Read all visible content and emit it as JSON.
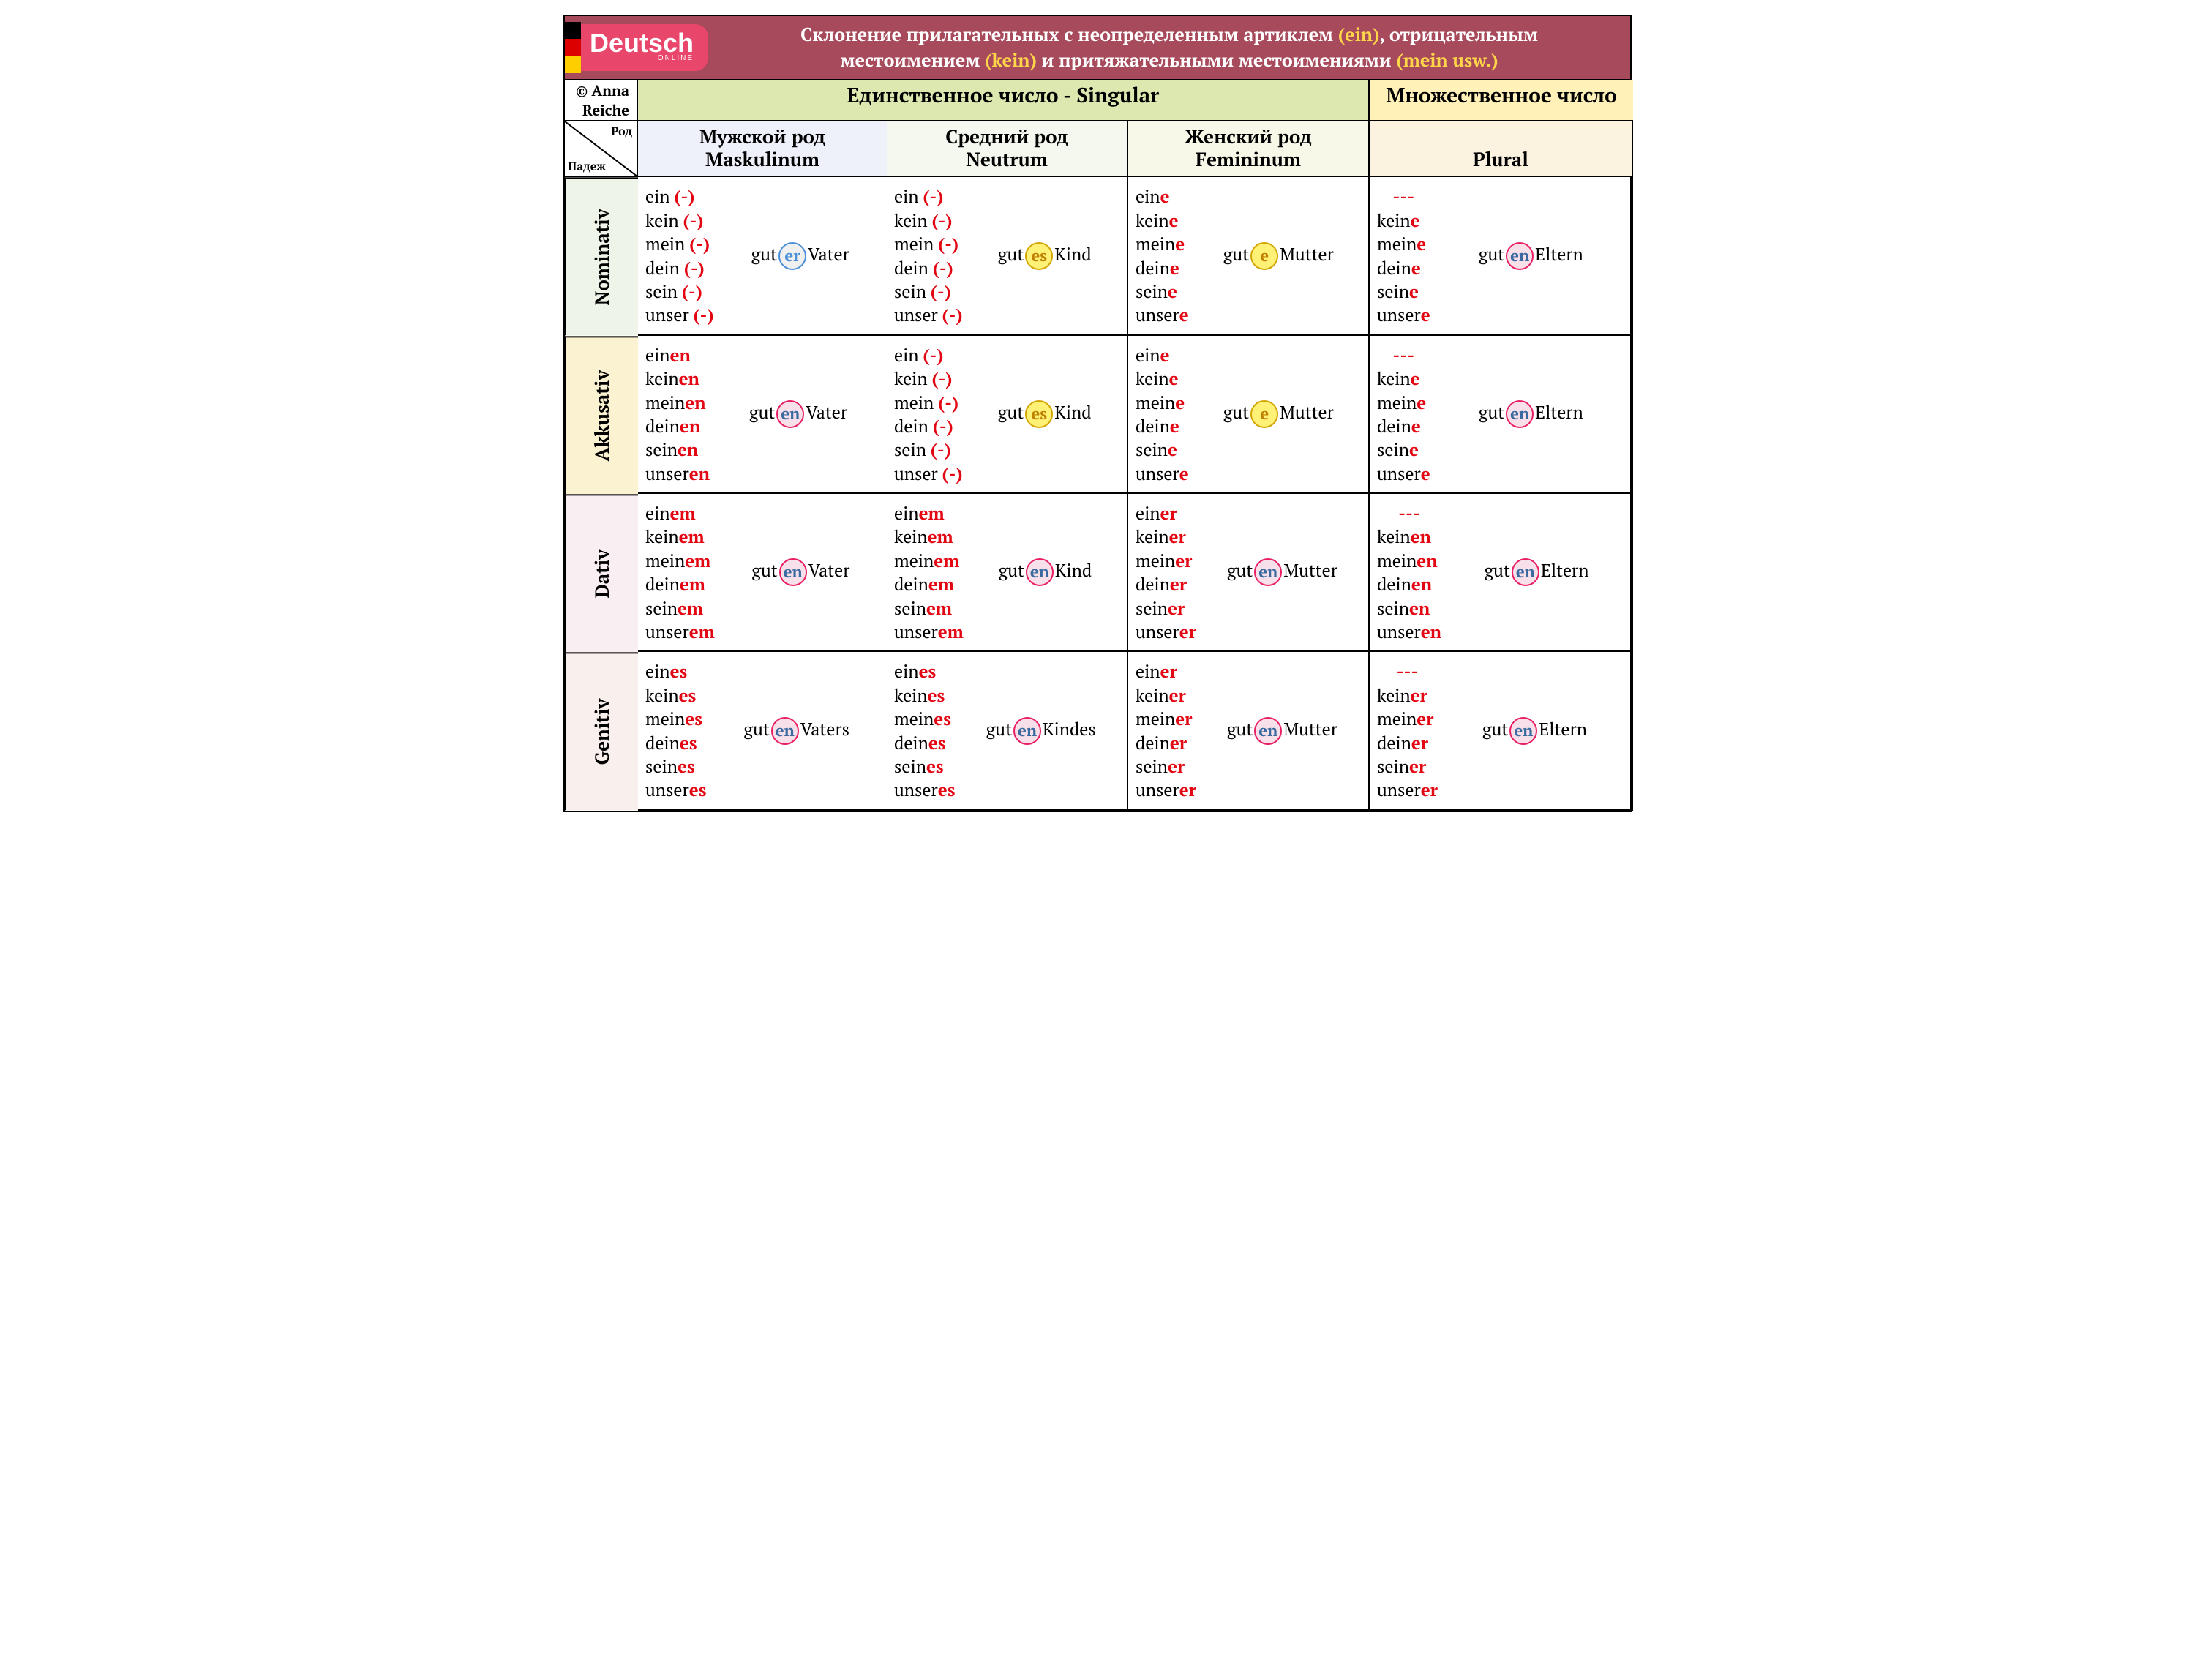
{
  "logo": {
    "main": "Deutsch",
    "sub": "ONLINE"
  },
  "title": {
    "l1a": "Склонение прилагательных с неопределенным артиклем ",
    "ein": "(ein)",
    "l1b": ", отрицательным",
    "l2a": "местоимением ",
    "kein": "(kein)",
    "l2b": " и притяжательными местоимениями ",
    "mein": "(mein usw.)"
  },
  "copyright": "© Anna Reiche",
  "singular": "Единственное число   -   Singular",
  "plural_hdr": "Множественное число",
  "diag": {
    "rod": "Род",
    "pad": "Падеж"
  },
  "cols": {
    "m": {
      "ru": "Мужской род",
      "de": "Maskulinum"
    },
    "n": {
      "ru": "Средний род",
      "de": "Neutrum"
    },
    "f": {
      "ru": "Женский род",
      "de": "Femininum"
    },
    "p": {
      "ru": "",
      "de": "Plural"
    }
  },
  "cases": {
    "nom": "Nominativ",
    "akk": "Akkusativ",
    "dat": "Dativ",
    "gen": "Genitiv"
  },
  "stems": [
    "ein",
    "kein",
    "mein",
    "dein",
    "sein",
    "unser"
  ],
  "plural_stems": [
    "kein",
    "mein",
    "dein",
    "sein",
    "unser"
  ],
  "nouns": {
    "m": "Vater",
    "n": "Kind",
    "f": "Mutter",
    "p": "Eltern",
    "m_gen": "Vaters",
    "n_gen": "Kindes"
  },
  "adj": "gut",
  "dash": "---",
  "colors": {
    "hdr_bg": "#a74a5c",
    "logo_bg": "#e9466b",
    "red": "#e30613",
    "yellow_txt": "#ffd54a",
    "sing_bg": "#dce8b0",
    "plur_bg": "#fff1b8",
    "ch_m": "#eef1f9",
    "ch_n": "#f5f8ee",
    "ch_f": "#f7f8e8",
    "ch_p": "#fbf2e0",
    "nom_bg": "#eef5e8",
    "akk_bg": "#faf2d0",
    "dat_bg": "#f9eef2",
    "gen_bg": "#f9f0ee",
    "circ_blue": "#4a90d9",
    "circ_yel_border": "#d4a500",
    "circ_yel_bg": "#fff176",
    "circ_pink_border": "#e91e63",
    "circ_pink_bg": "#f8e0ea"
  },
  "table": {
    "nom": {
      "m": {
        "end": "(-)",
        "adj_end": "er",
        "style": "blue"
      },
      "n": {
        "end": "(-)",
        "adj_end": "es",
        "style": "yel"
      },
      "f": {
        "end": "e",
        "adj_end": "e",
        "style": "yel"
      },
      "p": {
        "end": "e",
        "adj_end": "en",
        "style": "pink"
      }
    },
    "akk": {
      "m": {
        "end": "en",
        "adj_end": "en",
        "style": "pink"
      },
      "n": {
        "end": "(-)",
        "adj_end": "es",
        "style": "yel"
      },
      "f": {
        "end": "e",
        "adj_end": "e",
        "style": "yel"
      },
      "p": {
        "end": "e",
        "adj_end": "en",
        "style": "pink"
      }
    },
    "dat": {
      "m": {
        "end": "em",
        "adj_end": "en",
        "style": "pink"
      },
      "n": {
        "end": "em",
        "adj_end": "en",
        "style": "pink"
      },
      "f": {
        "end": "er",
        "adj_end": "en",
        "style": "pink"
      },
      "p": {
        "end": "en",
        "adj_end": "en",
        "style": "pink"
      }
    },
    "gen": {
      "m": {
        "end": "es",
        "adj_end": "en",
        "style": "pink",
        "noun_key": "m_gen"
      },
      "n": {
        "end": "es",
        "adj_end": "en",
        "style": "pink",
        "noun_key": "n_gen"
      },
      "f": {
        "end": "er",
        "adj_end": "en",
        "style": "pink"
      },
      "p": {
        "end": "er",
        "adj_end": "en",
        "style": "pink"
      }
    }
  }
}
